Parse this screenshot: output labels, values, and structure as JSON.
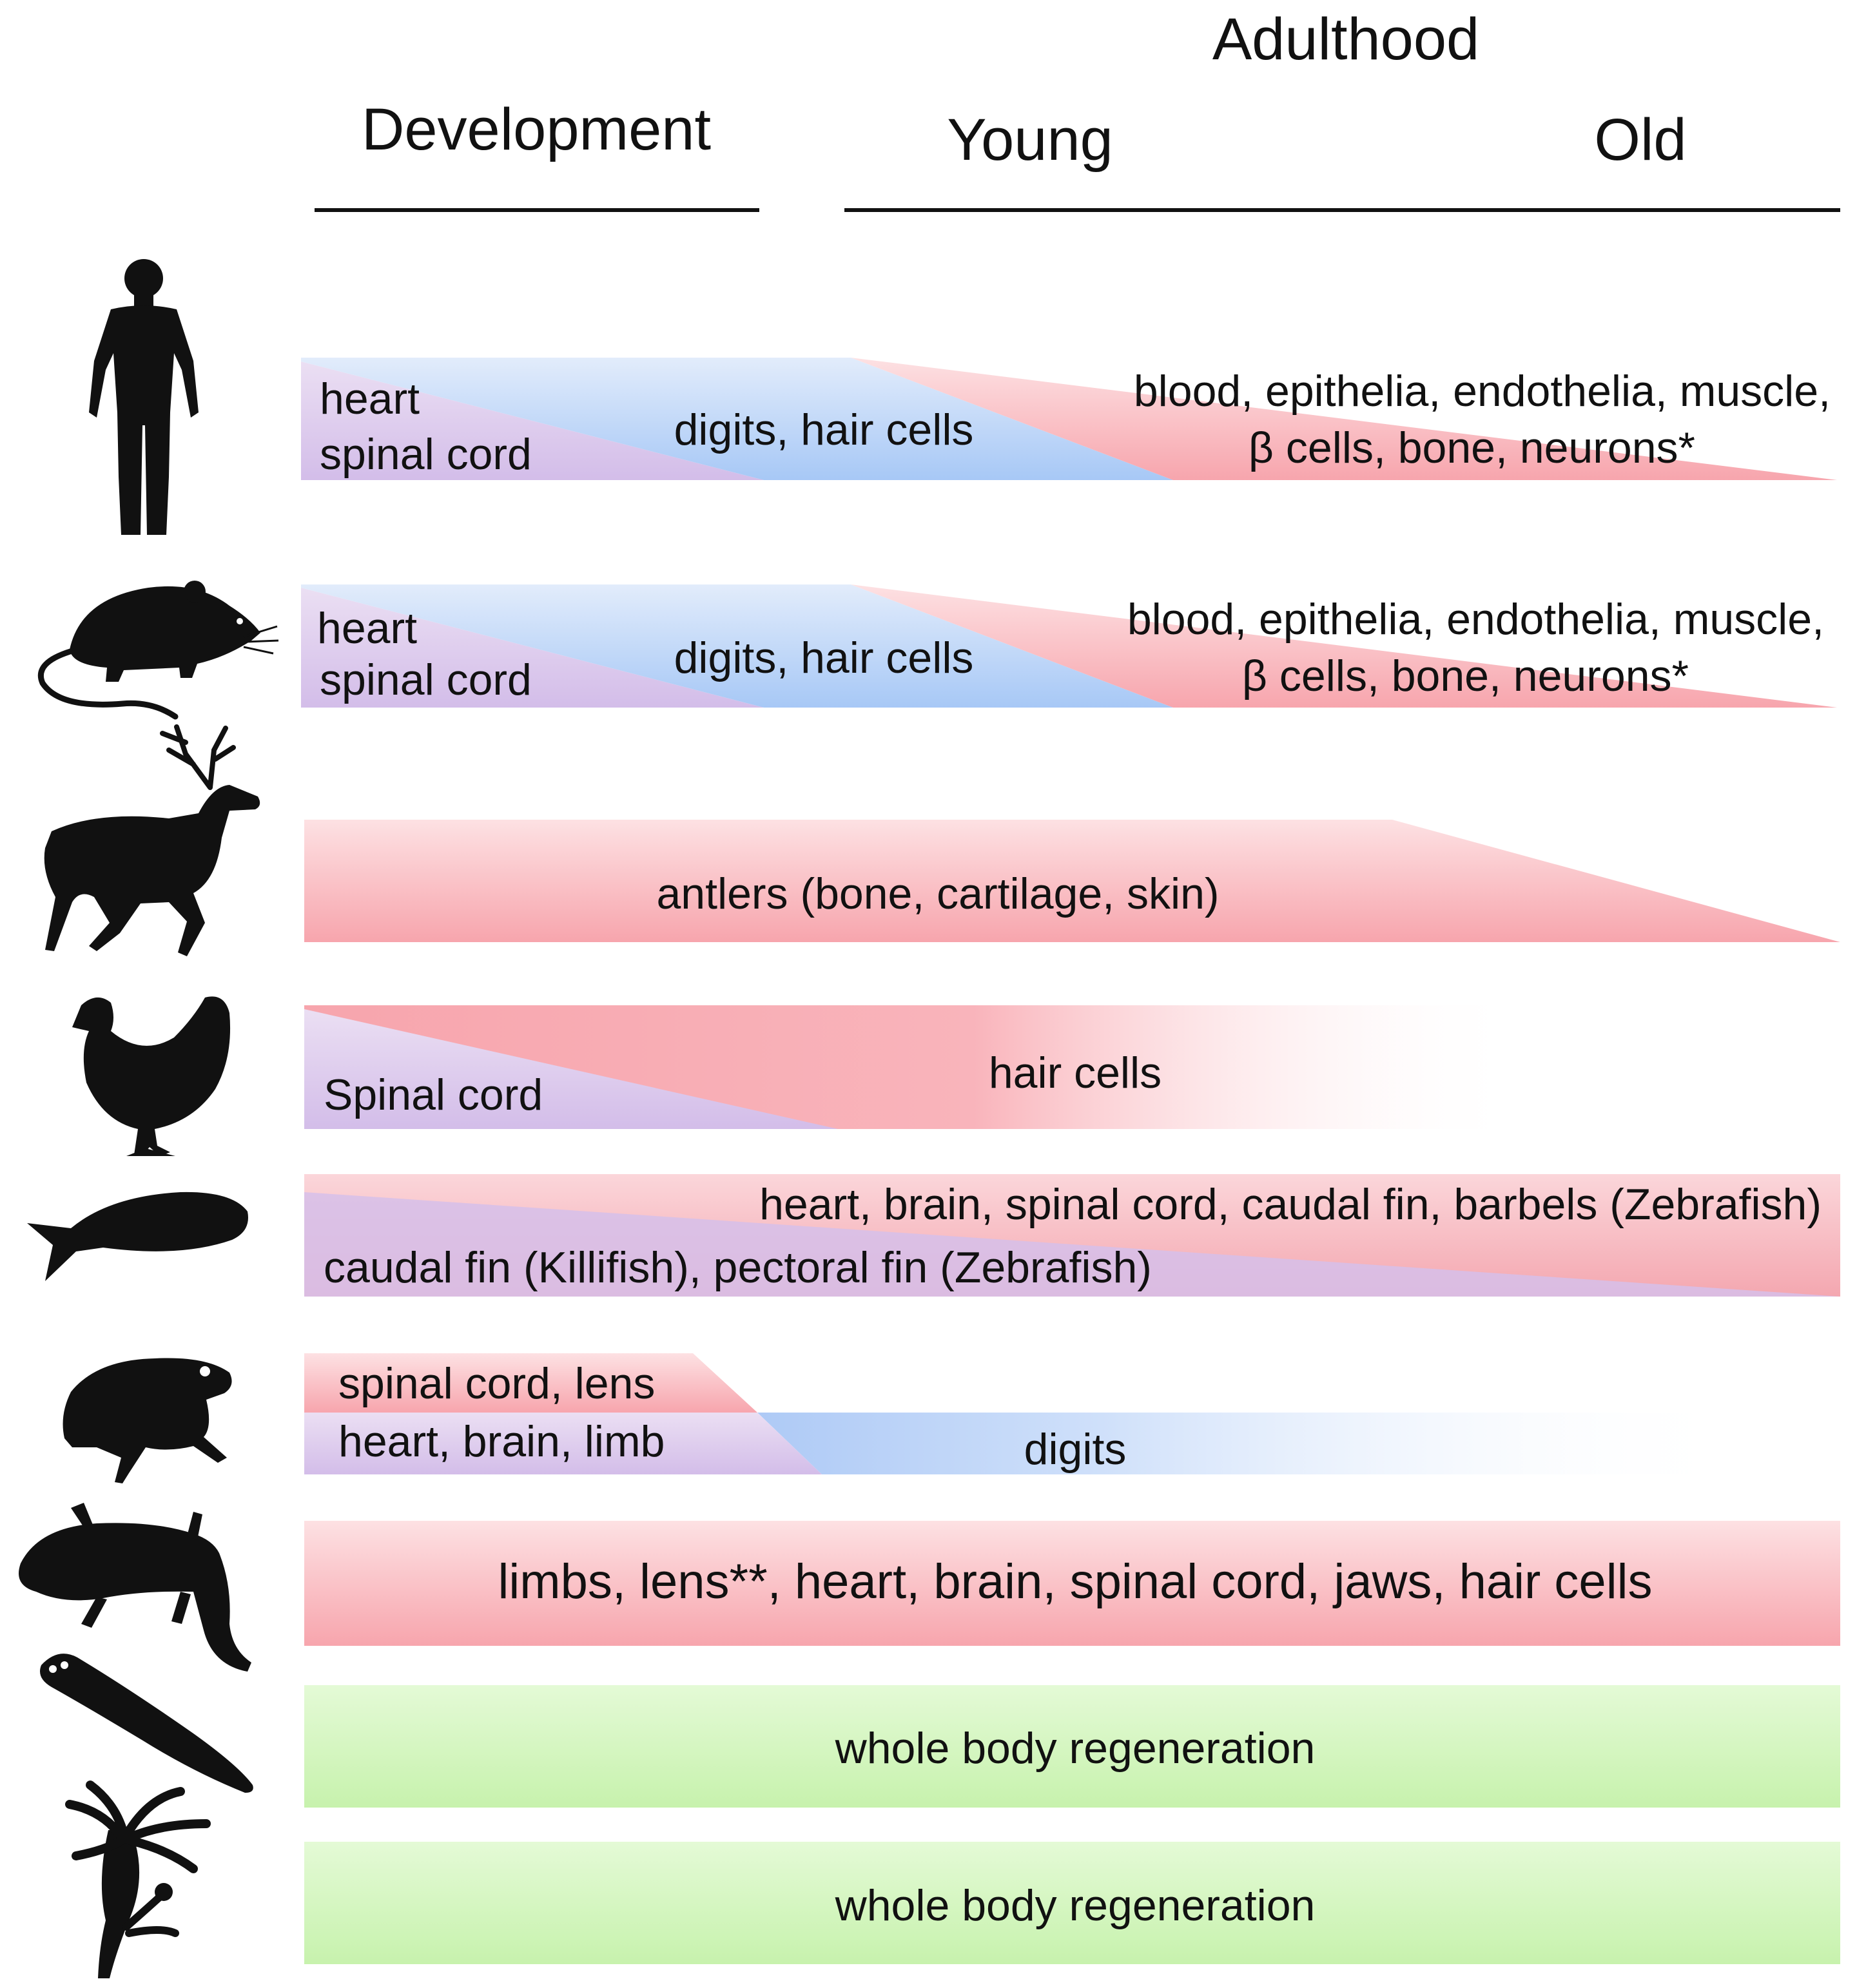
{
  "header": {
    "development": "Development",
    "adulthood": "Adulthood",
    "young": "Young",
    "old": "Old"
  },
  "rows": [
    {
      "organism": "human",
      "icon": "human-silhouette-icon",
      "labels": [
        "heart",
        "spinal cord",
        "digits, hair cells",
        "blood, epithelia, endothelia, muscle,",
        "β cells, bone, neurons*"
      ]
    },
    {
      "organism": "rodent",
      "icon": "rodent-silhouette-icon",
      "labels": [
        "heart",
        "spinal cord",
        "digits, hair cells",
        "blood, epithelia, endothelia, muscle,",
        "β cells, bone, neurons*"
      ]
    },
    {
      "organism": "deer",
      "icon": "deer-silhouette-icon",
      "labels": [
        "antlers (bone, cartilage, skin)"
      ]
    },
    {
      "organism": "chicken",
      "icon": "chicken-silhouette-icon",
      "labels": [
        "Spinal cord",
        "hair cells"
      ]
    },
    {
      "organism": "fish",
      "icon": "fish-silhouette-icon",
      "labels": [
        "heart, brain, spinal cord, caudal fin, barbels (Zebrafish)",
        "caudal fin (Killifish), pectoral fin (Zebrafish)"
      ]
    },
    {
      "organism": "frog",
      "icon": "frog-silhouette-icon",
      "labels": [
        "spinal cord, lens",
        "heart, brain, limb",
        "digits"
      ]
    },
    {
      "organism": "salamander",
      "icon": "salamander-silhouette-icon",
      "labels": [
        "limbs, lens**, heart, brain, spinal cord, jaws, hair cells"
      ]
    },
    {
      "organism": "planarian",
      "icon": "planarian-silhouette-icon",
      "labels": [
        "whole body regeneration"
      ]
    },
    {
      "organism": "hydra",
      "icon": "hydra-silhouette-icon",
      "labels": [
        "whole body regeneration"
      ]
    }
  ],
  "colors": {
    "red": "#f7a5ad",
    "blue": "#b0cff8",
    "purple": "#d6c0ea",
    "green": "#cdf5b5",
    "ink": "#111111"
  }
}
